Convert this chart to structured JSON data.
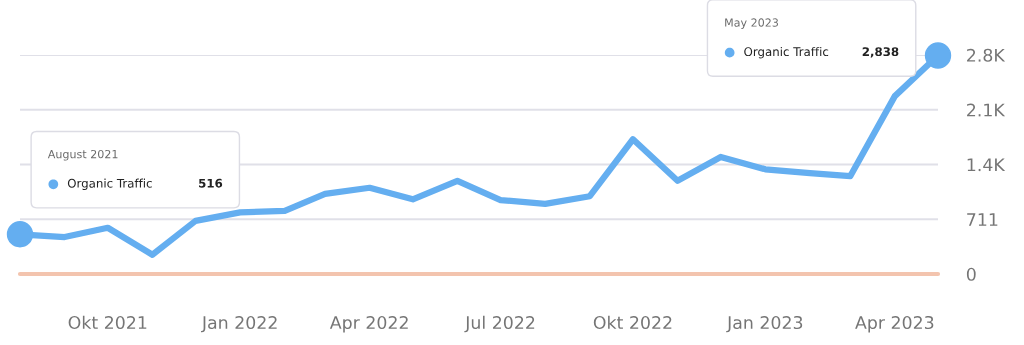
{
  "chart_data": {
    "type": "line",
    "x": [
      "2021-08",
      "2021-09",
      "2021-10",
      "2021-11",
      "2021-12",
      "2022-01",
      "2022-02",
      "2022-03",
      "2022-04",
      "2022-05",
      "2022-06",
      "2022-07",
      "2022-08",
      "2022-09",
      "2022-10",
      "2022-11",
      "2022-12",
      "2023-01",
      "2023-02",
      "2023-03",
      "2023-04",
      "2023-05"
    ],
    "series": [
      {
        "name": "Organic Traffic",
        "color": "#64aef0",
        "values": [
          516,
          480,
          600,
          250,
          690,
          800,
          820,
          1040,
          1120,
          970,
          1210,
          960,
          910,
          1010,
          1750,
          1210,
          1520,
          1360,
          1310,
          1270,
          2310,
          2838
        ]
      },
      {
        "color": "#f3c4ae",
        "values": [
          0,
          0,
          0,
          0,
          0,
          0,
          0,
          0,
          0,
          0,
          0,
          0,
          0,
          0,
          0,
          0,
          0,
          0,
          0,
          0,
          0,
          0
        ]
      }
    ],
    "xlim": [
      "2021-08",
      "2023-05"
    ],
    "xticks": [
      {
        "value": "2021-10",
        "label": "Okt 2021"
      },
      {
        "value": "2022-01",
        "label": "Jan 2022"
      },
      {
        "value": "2022-04",
        "label": "Apr 2022"
      },
      {
        "value": "2022-07",
        "label": "Jul 2022"
      },
      {
        "value": "2022-10",
        "label": "Okt 2022"
      },
      {
        "value": "2023-01",
        "label": "Jan 2023"
      },
      {
        "value": "2023-04",
        "label": "Apr 2023"
      }
    ],
    "ylim": [
      0,
      2844
    ],
    "yticks": [
      0,
      711,
      {
        "value": 1422,
        "label": "1.4K"
      },
      {
        "value": 2133,
        "label": "2.1K"
      },
      {
        "value": 2844,
        "label": "2.8K"
      }
    ],
    "grid": "y",
    "marker": "none",
    "line_style": "solid",
    "legend": "left",
    "annotations": [
      "August 2021",
      "516",
      "May 2023",
      "2,838"
    ]
  }
}
